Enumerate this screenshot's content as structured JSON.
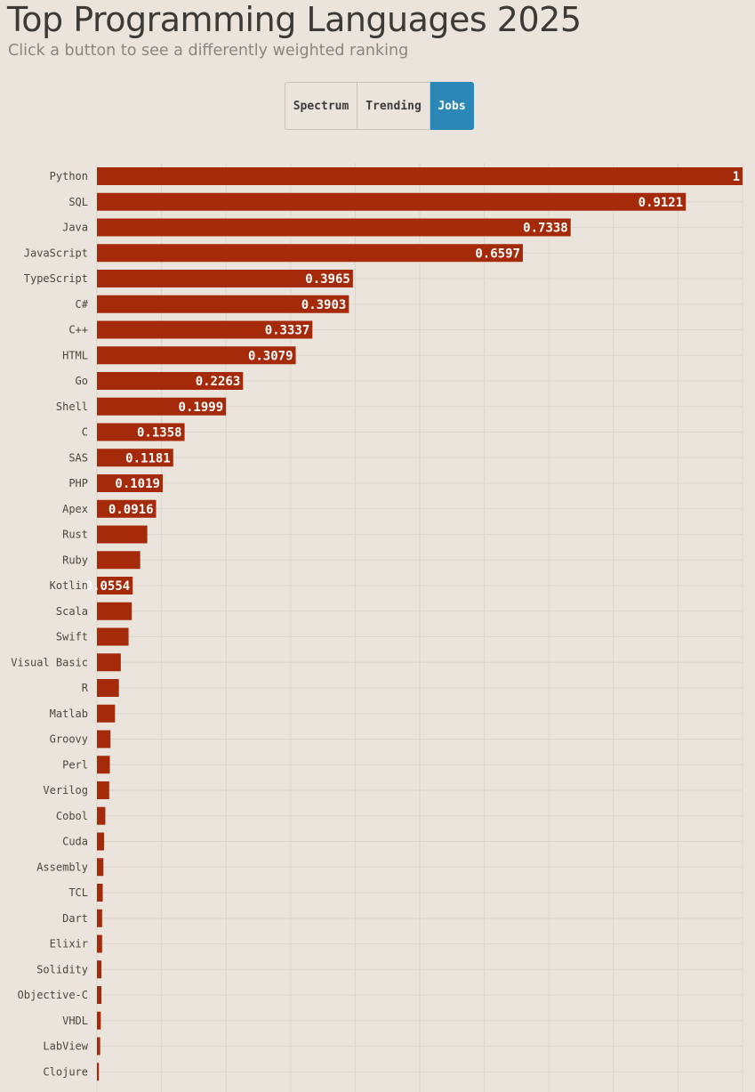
{
  "header": {
    "title": "Top Programming Languages 2025",
    "subtitle": "Click a button to see a differently weighted ranking"
  },
  "buttons": [
    {
      "label": "Spectrum",
      "active": false
    },
    {
      "label": "Trending",
      "active": false
    },
    {
      "label": "Jobs",
      "active": true
    }
  ],
  "colors": {
    "bar": "#a52a0a",
    "accent": "#2b87b5",
    "background": "#ebe4dc"
  },
  "chart_data": {
    "type": "bar",
    "orientation": "horizontal",
    "title": "Top Programming Languages 2025",
    "series_name": "Jobs",
    "xlim": [
      0,
      1
    ],
    "grid": true,
    "categories": [
      "Python",
      "SQL",
      "Java",
      "JavaScript",
      "TypeScript",
      "C#",
      "C++",
      "HTML",
      "Go",
      "Shell",
      "C",
      "SAS",
      "PHP",
      "Apex",
      "Rust",
      "Ruby",
      "Kotlin",
      "Scala",
      "Swift",
      "Visual Basic",
      "R",
      "Matlab",
      "Groovy",
      "Perl",
      "Verilog",
      "Cobol",
      "Cuda",
      "Assembly",
      "TCL",
      "Dart",
      "Elixir",
      "Solidity",
      "Objective-C",
      "VHDL",
      "LabView",
      "Clojure"
    ],
    "values": [
      1,
      0.9121,
      0.7338,
      0.6597,
      0.3965,
      0.3903,
      0.3337,
      0.3079,
      0.2263,
      0.1999,
      0.1358,
      0.1181,
      0.1019,
      0.0916,
      0.078,
      0.067,
      0.0554,
      0.054,
      0.049,
      0.037,
      0.034,
      0.028,
      0.021,
      0.02,
      0.019,
      0.013,
      0.011,
      0.01,
      0.009,
      0.008,
      0.008,
      0.007,
      0.007,
      0.006,
      0.005,
      0.003
    ],
    "value_labels": [
      "1",
      "0.9121",
      "0.7338",
      "0.6597",
      "0.3965",
      "0.3903",
      "0.3337",
      "0.3079",
      "0.2263",
      "0.1999",
      "0.1358",
      "0.1181",
      "0.1019",
      "0.0916",
      null,
      null,
      "0.0554",
      null,
      null,
      null,
      null,
      null,
      null,
      null,
      null,
      null,
      null,
      null,
      null,
      null,
      null,
      null,
      null,
      null,
      null,
      null
    ]
  }
}
